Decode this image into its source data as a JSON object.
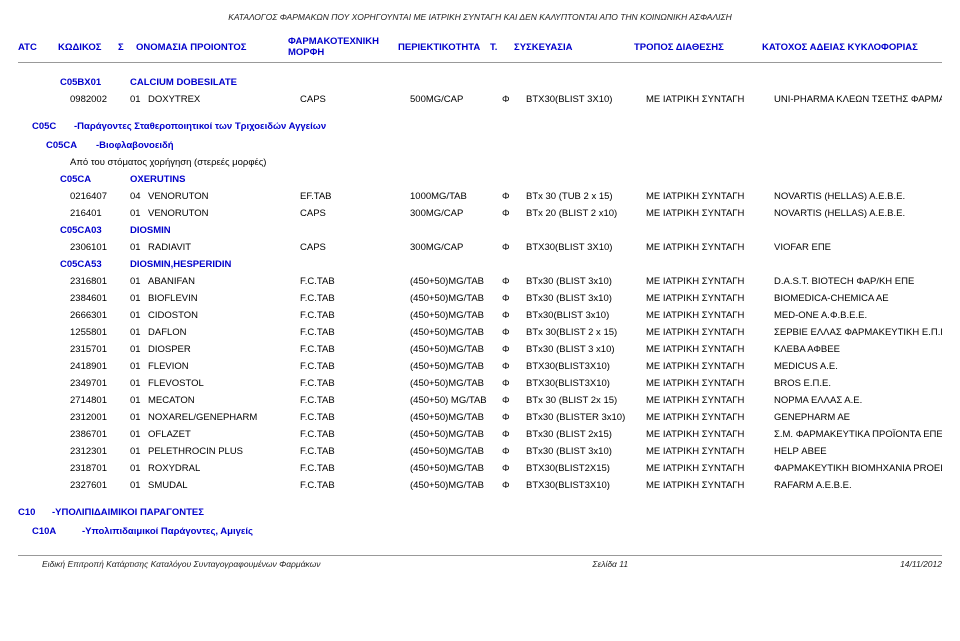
{
  "page_header": "ΚΑΤΑΛΟΓΟΣ ΦΑΡΜΑΚΩΝ ΠΟΥ ΧΟΡΗΓΟΥΝΤΑΙ ΜΕ ΙΑΤΡΙΚΗ ΣΥΝΤΑΓΗ ΚΑΙ ΔΕΝ ΚΑΛΥΠΤΟΝΤΑΙ ΑΠΟ ΤΗΝ ΚΟΙΝΩΝΙΚΗ ΑΣΦΑΛΙΣΗ",
  "columns": {
    "atc": "ATC",
    "code": "ΚΩΔΙΚΟΣ",
    "s": "Σ",
    "name": "ΟΝΟΜΑΣΙΑ ΠΡΟΙΟΝΤΟΣ",
    "form_l1": "ΦΑΡΜΑΚΟΤΕΧΝΙΚΗ",
    "form_l2": "ΜΟΡΦΗ",
    "conc": "ΠΕΡΙΕΚΤΙΚΟΤΗΤΑ",
    "t": "Τ.",
    "pack": "ΣΥΣΚΕΥΑΣΙΑ",
    "disp": "ΤΡΟΠΟΣ ΔΙΑΘΕΣΗΣ",
    "holder": "ΚΑΤΟΧΟΣ ΑΔΕΙΑΣ ΚΥΚΛΟΦΟΡΙΑΣ"
  },
  "group1": {
    "code": "C05BX01",
    "desc": "CALCIUM DOBESILATE"
  },
  "row1": {
    "code": "0982002",
    "s": "01",
    "name": "DOXYTREX",
    "form": "CAPS",
    "conc": "500MG/CAP",
    "t": "Φ",
    "pack": "BTX30(BLIST 3X10)",
    "disp": "ΜΕ  ΙΑΤΡΙΚΗ ΣΥΝΤΑΓΗ",
    "holder": "UNI-PHARMA ΚΛΕΩΝ ΤΣΕΤΗΣ ΦΑΡΜΑΚ"
  },
  "sec_c05c": {
    "code": "C05C",
    "desc": "-Παράγοντες Σταθεροποιητικοί των Τριχοειδών Αγγείων"
  },
  "sec_c05ca": {
    "code": "C05CA",
    "desc": "-Βιοφλαβονοειδή"
  },
  "note_oral": "Από του στόματος χορήγηση (στερεές μορφές)",
  "group_ox": {
    "code": "C05CA",
    "desc": "OXERUTINS"
  },
  "rows_ox": [
    {
      "code": "0216407",
      "s": "04",
      "name": "VENORUTON",
      "form": "EF.TAB",
      "conc": "1000MG/TAB",
      "t": "Φ",
      "pack": "BTx 30 (TUB 2 x 15)",
      "disp": "ΜΕ  ΙΑΤΡΙΚΗ ΣΥΝΤΑΓΗ",
      "holder": "NOVARTIS (HELLAS) A.E.B.E."
    },
    {
      "code": "216401",
      "s": "01",
      "name": "VENORUTON",
      "form": "CAPS",
      "conc": "300MG/CAP",
      "t": "Φ",
      "pack": "BTx 20 (BLIST 2 x10)",
      "disp": "ΜΕ  ΙΑΤΡΙΚΗ ΣΥΝΤΑΓΗ",
      "holder": "NOVARTIS (HELLAS) A.E.B.E."
    }
  ],
  "group_dio": {
    "code": "C05CA03",
    "desc": "DIOSMIN"
  },
  "rows_dio": [
    {
      "code": "2306101",
      "s": "01",
      "name": "RADIAVIT",
      "form": "CAPS",
      "conc": "300MG/CAP",
      "t": "Φ",
      "pack": "BTX30(BLIST 3X10)",
      "disp": "ΜΕ  ΙΑΤΡΙΚΗ ΣΥΝΤΑΓΗ",
      "holder": "VIOFAR ΕΠΕ"
    }
  ],
  "group_dh": {
    "code": "C05CA53",
    "desc": "DIOSMIN,HESPERIDIN"
  },
  "rows_dh": [
    {
      "code": "2316801",
      "s": "01",
      "name": "ABANIFAN",
      "form": "F.C.TAB",
      "conc": "(450+50)MG/TAB",
      "t": "Φ",
      "pack": "BTx30 (BLIST 3x10)",
      "disp": "ΜΕ  ΙΑΤΡΙΚΗ ΣΥΝΤΑΓΗ",
      "holder": "D.A.S.T. BIOTECH ΦΑΡ/ΚΗ ΕΠΕ"
    },
    {
      "code": "2384601",
      "s": "01",
      "name": "BIOFLEVIN",
      "form": "F.C.TAB",
      "conc": "(450+50)MG/TAB",
      "t": "Φ",
      "pack": "BTx30 (BLIST 3x10)",
      "disp": "ΜΕ  ΙΑΤΡΙΚΗ ΣΥΝΤΑΓΗ",
      "holder": "BIOMEDICA-CHEMICA AE"
    },
    {
      "code": "2666301",
      "s": "01",
      "name": "CIDOSTON",
      "form": "F.C.TAB",
      "conc": "(450+50)MG/TAB",
      "t": "Φ",
      "pack": "BTx30(BLIST 3x10)",
      "disp": "ΜΕ  ΙΑΤΡΙΚΗ ΣΥΝΤΑΓΗ",
      "holder": "MED-ONE A.Φ.B.E.E."
    },
    {
      "code": "1255801",
      "s": "01",
      "name": "DAFLON",
      "form": "F.C.TAB",
      "conc": "(450+50)MG/TAB",
      "t": "Φ",
      "pack": "BTx 30(BLIST 2 x 15)",
      "disp": "ΜΕ  ΙΑΤΡΙΚΗ ΣΥΝΤΑΓΗ",
      "holder": "ΣΕΡΒΙΕ ΕΛΛΑΣ ΦΑΡΜΑΚΕΥΤΙΚΗ Ε.Π.Ε."
    },
    {
      "code": "2315701",
      "s": "01",
      "name": "DIOSPER",
      "form": "F.C.TAB",
      "conc": "(450+50)MG/TAB",
      "t": "Φ",
      "pack": "BTx30 (BLIST 3 x10)",
      "disp": "ΜΕ  ΙΑΤΡΙΚΗ ΣΥΝΤΑΓΗ",
      "holder": "ΚΛΕΒΑ ΑΦΒΕΕ"
    },
    {
      "code": "2418901",
      "s": "01",
      "name": "FLEVION",
      "form": "F.C.TAB",
      "conc": "(450+50)MG/TAB",
      "t": "Φ",
      "pack": "BTX30(BLIST3X10)",
      "disp": "ΜΕ  ΙΑΤΡΙΚΗ ΣΥΝΤΑΓΗ",
      "holder": "MEDICUS A.E."
    },
    {
      "code": "2349701",
      "s": "01",
      "name": "FLEVOSTOL",
      "form": "F.C.TAB",
      "conc": "(450+50)MG/TAB",
      "t": "Φ",
      "pack": "BTX30(BLIST3X10)",
      "disp": "ΜΕ  ΙΑΤΡΙΚΗ ΣΥΝΤΑΓΗ",
      "holder": "BROS Ε.Π.Ε."
    },
    {
      "code": "2714801",
      "s": "01",
      "name": "MECATON",
      "form": "F.C.TAB",
      "conc": "(450+50) MG/TAB",
      "t": "Φ",
      "pack": "BTx 30 (BLIST 2x 15)",
      "disp": "ΜΕ  ΙΑΤΡΙΚΗ ΣΥΝΤΑΓΗ",
      "holder": "ΝΟΡΜΑ ΕΛΛΑΣ Α.Ε."
    },
    {
      "code": "2312001",
      "s": "01",
      "name": "NOXAREL/GENEPHARM",
      "form": "F.C.TAB",
      "conc": "(450+50)MG/TAB",
      "t": "Φ",
      "pack": "BTx30 (BLISTER 3x10)",
      "disp": "ΜΕ  ΙΑΤΡΙΚΗ ΣΥΝΤΑΓΗ",
      "holder": "GENEPHARM AE"
    },
    {
      "code": "2386701",
      "s": "01",
      "name": "OFLAZET",
      "form": "F.C.TAB",
      "conc": "(450+50)MG/TAB",
      "t": "Φ",
      "pack": "BTx30 (BLIST 2x15)",
      "disp": "ΜΕ  ΙΑΤΡΙΚΗ ΣΥΝΤΑΓΗ",
      "holder": "Σ.Μ. ΦΑΡΜΑΚΕΥΤΙΚΑ ΠΡΟΪΟΝΤΑ ΕΠΕ"
    },
    {
      "code": "2312301",
      "s": "01",
      "name": "PELETHROCIN PLUS",
      "form": "F.C.TAB",
      "conc": "(450+50)MG/TAB",
      "t": "Φ",
      "pack": "BTx30 (BLIST 3x10)",
      "disp": "ΜΕ  ΙΑΤΡΙΚΗ ΣΥΝΤΑΓΗ",
      "holder": "HELP ΑΒΕΕ"
    },
    {
      "code": "2318701",
      "s": "01",
      "name": "ROXYDRAL",
      "form": "F.C.TAB",
      "conc": "(450+50)MG/TAB",
      "t": "Φ",
      "pack": "BTX30(BLIST2X15)",
      "disp": "ΜΕ  ΙΑΤΡΙΚΗ ΣΥΝΤΑΓΗ",
      "holder": "ΦΑΡΜΑΚΕΥΤΙΚΗ ΒΙΟΜΗΧΑΝΙΑ PROEL Ι"
    },
    {
      "code": "2327601",
      "s": "01",
      "name": "SMUDAL",
      "form": "F.C.TAB",
      "conc": "(450+50)MG/TAB",
      "t": "Φ",
      "pack": "BTX30(BLIST3X10)",
      "disp": "ΜΕ  ΙΑΤΡΙΚΗ ΣΥΝΤΑΓΗ",
      "holder": "RAFARM A.E.B.E."
    }
  ],
  "sec_c10": {
    "code": "C10",
    "desc": "-ΥΠΟΛΙΠΙΔΑΙΜΙΚΟΙ ΠΑΡΑΓΟΝΤΕΣ"
  },
  "sec_c10a": {
    "code": "C10A",
    "desc": "-Υπολιπιδαιμικοί Παράγοντες, Αμιγείς"
  },
  "footer": {
    "left": "Ειδική Επιτροπή Κατάρτισης Καταλόγου Συνταγογραφουμένων Φαρμάκων",
    "center": "Σελίδα 11",
    "right": "14/11/2012"
  }
}
